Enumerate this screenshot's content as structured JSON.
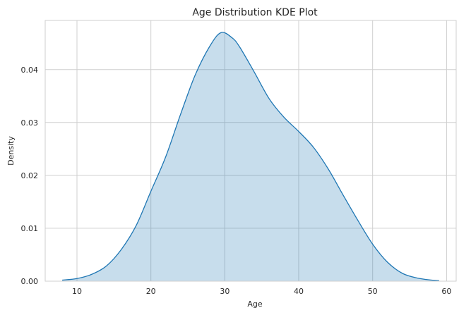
{
  "chart_data": {
    "type": "area",
    "title": "Age Distribution KDE Plot",
    "xlabel": "Age",
    "ylabel": "Density",
    "xlim": [
      5.7,
      61.3
    ],
    "ylim": [
      0,
      0.0493
    ],
    "xticks": [
      10,
      20,
      30,
      40,
      50,
      60
    ],
    "xtick_labels": [
      "10",
      "20",
      "30",
      "40",
      "50",
      "60"
    ],
    "yticks": [
      0,
      0.01,
      0.02,
      0.03,
      0.04
    ],
    "ytick_labels": [
      "0.00",
      "0.01",
      "0.02",
      "0.03",
      "0.04"
    ],
    "grid": true,
    "legend": "none",
    "series": [
      {
        "color": "#1f77b4",
        "fill_color": "#1f77b4",
        "fill_opacity": 0.25,
        "x": [
          8,
          10,
          12,
          14,
          16,
          18,
          20,
          22,
          24,
          26,
          28,
          29.5,
          31,
          32,
          34,
          36,
          38,
          40,
          42,
          44,
          46,
          48,
          50,
          52,
          54,
          56,
          58,
          59
        ],
        "y": [
          0.0002,
          0.0005,
          0.0013,
          0.0029,
          0.006,
          0.0105,
          0.017,
          0.0235,
          0.0315,
          0.039,
          0.0445,
          0.047,
          0.046,
          0.0443,
          0.0395,
          0.0345,
          0.031,
          0.0283,
          0.0253,
          0.0212,
          0.0163,
          0.0115,
          0.007,
          0.0036,
          0.0015,
          0.0006,
          0.0002,
          0.0001
        ]
      }
    ]
  }
}
